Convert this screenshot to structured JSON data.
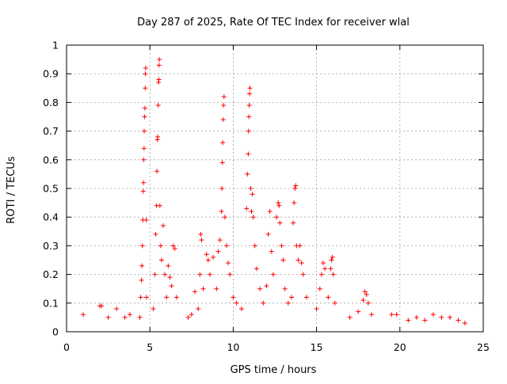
{
  "chart_data": {
    "type": "scatter",
    "title": "Day 287 of 2025, Rate Of TEC Index for receiver wlal",
    "xlabel": "GPS time / hours",
    "ylabel": "ROTI / TECUs",
    "xlim": [
      0,
      25
    ],
    "ylim": [
      0,
      1
    ],
    "x_ticks": [
      0,
      5,
      10,
      15,
      20,
      25
    ],
    "y_ticks": [
      0,
      0.1,
      0.2,
      0.3,
      0.4,
      0.5,
      0.6,
      0.7,
      0.8,
      0.9,
      1
    ],
    "x_tick_labels": [
      "0",
      "5",
      "10",
      "15",
      "20",
      "25"
    ],
    "y_tick_labels": [
      "0",
      "0.1",
      "0.2",
      "0.3",
      "0.4",
      "0.5",
      "0.6",
      "0.7",
      "0.8",
      "0.9",
      "1"
    ],
    "grid": true,
    "marker": "plus",
    "marker_color": "#ff0000",
    "series": [
      {
        "points": [
          [
            4.4,
            0.05
          ],
          [
            4.45,
            0.12
          ],
          [
            4.5,
            0.18
          ],
          [
            4.52,
            0.23
          ],
          [
            4.55,
            0.3
          ],
          [
            4.58,
            0.39
          ],
          [
            4.6,
            0.49
          ],
          [
            4.62,
            0.52
          ],
          [
            4.63,
            0.6
          ],
          [
            4.65,
            0.64
          ],
          [
            4.66,
            0.7
          ],
          [
            4.68,
            0.75
          ],
          [
            4.7,
            0.78
          ],
          [
            4.72,
            0.85
          ],
          [
            4.73,
            0.9
          ],
          [
            4.75,
            0.92
          ],
          [
            4.78,
            0.39
          ],
          [
            4.8,
            0.12
          ],
          [
            5.2,
            0.08
          ],
          [
            5.3,
            0.2
          ],
          [
            5.35,
            0.34
          ],
          [
            5.4,
            0.44
          ],
          [
            5.42,
            0.56
          ],
          [
            5.45,
            0.67
          ],
          [
            5.47,
            0.68
          ],
          [
            5.5,
            0.79
          ],
          [
            5.52,
            0.87
          ],
          [
            5.54,
            0.88
          ],
          [
            5.55,
            0.93
          ],
          [
            5.57,
            0.95
          ],
          [
            5.6,
            0.44
          ],
          [
            5.65,
            0.3
          ],
          [
            5.7,
            0.25
          ],
          [
            5.8,
            0.37
          ],
          [
            5.9,
            0.2
          ],
          [
            6.0,
            0.12
          ],
          [
            6.1,
            0.23
          ],
          [
            6.2,
            0.19
          ],
          [
            6.3,
            0.16
          ],
          [
            6.4,
            0.3
          ],
          [
            6.5,
            0.29
          ],
          [
            6.6,
            0.12
          ],
          [
            7.3,
            0.05
          ],
          [
            7.5,
            0.06
          ],
          [
            7.7,
            0.14
          ],
          [
            7.9,
            0.08
          ],
          [
            8.0,
            0.2
          ],
          [
            8.05,
            0.34
          ],
          [
            8.1,
            0.32
          ],
          [
            8.2,
            0.15
          ],
          [
            8.4,
            0.27
          ],
          [
            8.5,
            0.25
          ],
          [
            8.6,
            0.2
          ],
          [
            8.8,
            0.26
          ],
          [
            9.0,
            0.15
          ],
          [
            9.1,
            0.28
          ],
          [
            9.2,
            0.32
          ],
          [
            9.3,
            0.42
          ],
          [
            9.32,
            0.5
          ],
          [
            9.35,
            0.59
          ],
          [
            9.37,
            0.66
          ],
          [
            9.4,
            0.74
          ],
          [
            9.42,
            0.79
          ],
          [
            9.45,
            0.82
          ],
          [
            9.5,
            0.4
          ],
          [
            9.6,
            0.3
          ],
          [
            9.7,
            0.24
          ],
          [
            9.8,
            0.2
          ],
          [
            10.0,
            0.12
          ],
          [
            10.2,
            0.1
          ],
          [
            10.5,
            0.08
          ],
          [
            10.8,
            0.43
          ],
          [
            10.85,
            0.55
          ],
          [
            10.9,
            0.62
          ],
          [
            10.92,
            0.7
          ],
          [
            10.94,
            0.75
          ],
          [
            10.96,
            0.79
          ],
          [
            10.98,
            0.83
          ],
          [
            11.0,
            0.85
          ],
          [
            11.05,
            0.5
          ],
          [
            11.1,
            0.42
          ],
          [
            11.15,
            0.48
          ],
          [
            11.2,
            0.4
          ],
          [
            11.3,
            0.3
          ],
          [
            11.4,
            0.22
          ],
          [
            11.6,
            0.15
          ],
          [
            11.8,
            0.1
          ],
          [
            12.0,
            0.16
          ],
          [
            12.1,
            0.34
          ],
          [
            12.2,
            0.42
          ],
          [
            12.3,
            0.28
          ],
          [
            12.4,
            0.2
          ],
          [
            12.6,
            0.4
          ],
          [
            12.7,
            0.45
          ],
          [
            12.75,
            0.44
          ],
          [
            12.8,
            0.38
          ],
          [
            12.9,
            0.3
          ],
          [
            13.0,
            0.25
          ],
          [
            13.1,
            0.15
          ],
          [
            13.3,
            0.1
          ],
          [
            13.5,
            0.12
          ],
          [
            13.6,
            0.38
          ],
          [
            13.65,
            0.45
          ],
          [
            13.7,
            0.5
          ],
          [
            13.75,
            0.51
          ],
          [
            13.8,
            0.3
          ],
          [
            13.9,
            0.25
          ],
          [
            14.0,
            0.3
          ],
          [
            14.1,
            0.24
          ],
          [
            14.2,
            0.2
          ],
          [
            14.4,
            0.12
          ],
          [
            15.0,
            0.08
          ],
          [
            15.2,
            0.15
          ],
          [
            15.3,
            0.2
          ],
          [
            15.4,
            0.24
          ],
          [
            15.5,
            0.22
          ],
          [
            15.7,
            0.12
          ],
          [
            15.85,
            0.22
          ],
          [
            15.9,
            0.25
          ],
          [
            15.95,
            0.26
          ],
          [
            16.0,
            0.2
          ],
          [
            16.1,
            0.1
          ],
          [
            17.0,
            0.05
          ],
          [
            17.5,
            0.07
          ],
          [
            17.8,
            0.11
          ],
          [
            17.9,
            0.14
          ],
          [
            18.0,
            0.13
          ],
          [
            18.1,
            0.1
          ],
          [
            18.3,
            0.06
          ],
          [
            1.0,
            0.06
          ],
          [
            2.0,
            0.09
          ],
          [
            2.1,
            0.09
          ],
          [
            2.5,
            0.05
          ],
          [
            3.0,
            0.08
          ],
          [
            3.5,
            0.05
          ],
          [
            3.8,
            0.06
          ],
          [
            19.5,
            0.06
          ],
          [
            19.8,
            0.06
          ],
          [
            20.5,
            0.04
          ],
          [
            21.0,
            0.05
          ],
          [
            21.5,
            0.04
          ],
          [
            22.0,
            0.06
          ],
          [
            22.5,
            0.05
          ],
          [
            23.0,
            0.05
          ],
          [
            23.5,
            0.04
          ],
          [
            23.9,
            0.03
          ]
        ]
      }
    ]
  }
}
